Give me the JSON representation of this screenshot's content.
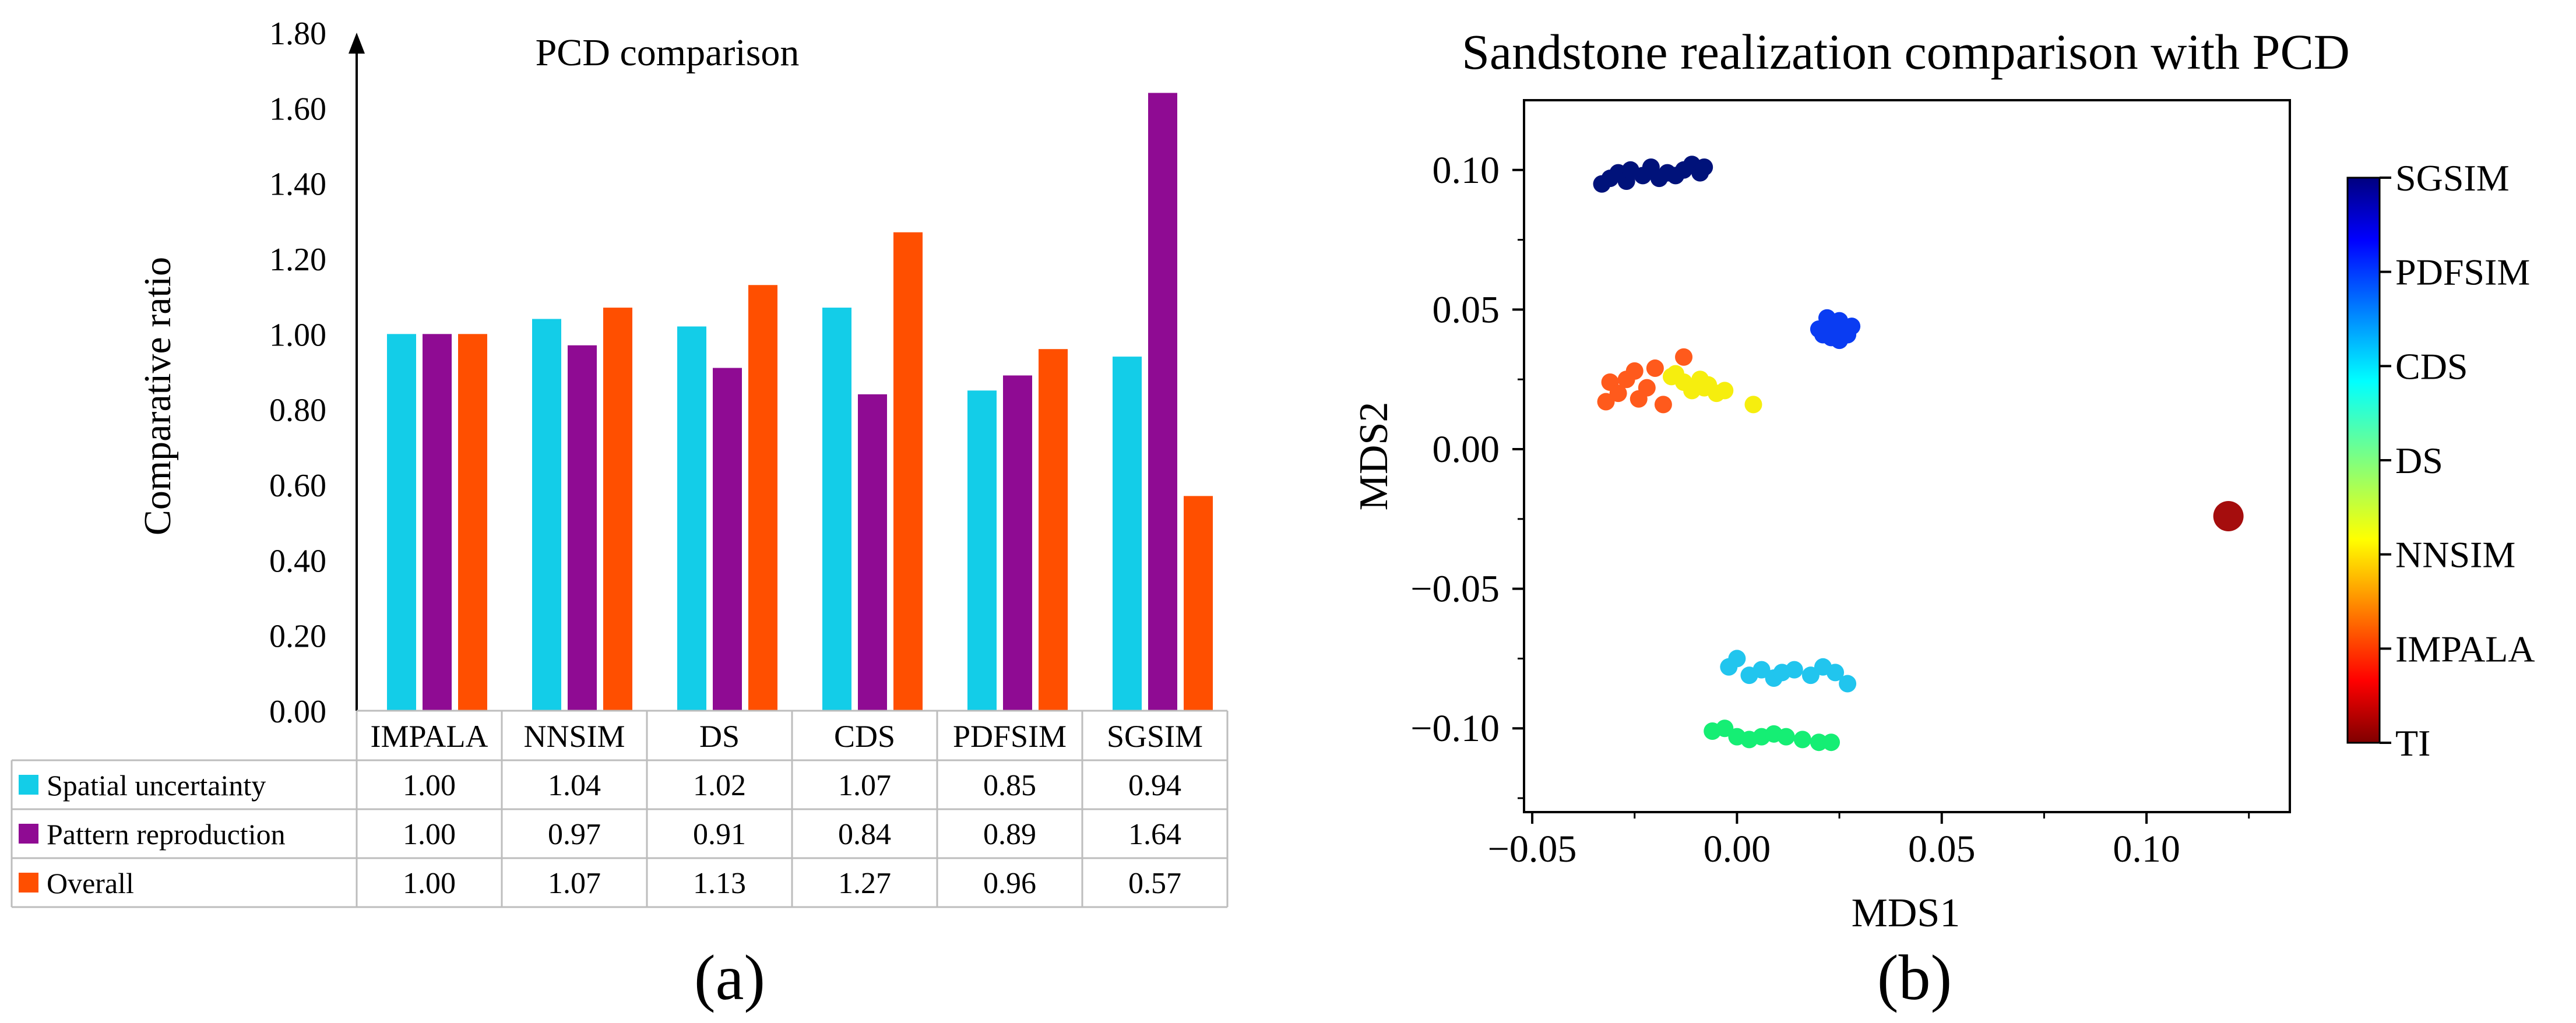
{
  "chart_data": [
    {
      "type": "bar",
      "title": "PCD comparison",
      "ylabel": "Comparative ratio",
      "xlabel": "",
      "ylim": [
        0,
        1.8
      ],
      "yticks": [
        "0.00",
        "0.20",
        "0.40",
        "0.60",
        "0.80",
        "1.00",
        "1.20",
        "1.40",
        "1.60",
        "1.80"
      ],
      "categories": [
        "IMPALA",
        "NNSIM",
        "DS",
        "CDS",
        "PDFSIM",
        "SGSIM"
      ],
      "series": [
        {
          "name": "Spatial uncertainty",
          "color": "#13cde8",
          "values": [
            1.0,
            1.04,
            1.02,
            1.07,
            0.85,
            0.94
          ],
          "labels": [
            "1.00",
            "1.04",
            "1.02",
            "1.07",
            "0.85",
            "0.94"
          ]
        },
        {
          "name": "Pattern reproduction",
          "color": "#8f0b93",
          "values": [
            1.0,
            0.97,
            0.91,
            0.84,
            0.89,
            1.64
          ],
          "labels": [
            "1.00",
            "0.97",
            "0.91",
            "0.84",
            "0.89",
            "1.64"
          ]
        },
        {
          "name": "Overall",
          "color": "#ff4f00",
          "values": [
            1.0,
            1.07,
            1.13,
            1.27,
            0.96,
            0.57
          ],
          "labels": [
            "1.00",
            "1.07",
            "1.13",
            "1.27",
            "0.96",
            "0.57"
          ]
        }
      ],
      "grid": false,
      "legend": "data-table below",
      "panel_label": "(a)"
    },
    {
      "type": "scatter",
      "title": "Sandstone realization comparison with PCD",
      "xlabel": "MDS1",
      "ylabel": "MDS2",
      "xlim": [
        -0.052,
        0.135
      ],
      "ylim": [
        -0.13,
        0.125
      ],
      "xticks": [
        -0.05,
        0.0,
        0.05,
        0.1
      ],
      "xtick_labels": [
        "−0.05",
        "0.00",
        "0.05",
        "0.10"
      ],
      "yticks": [
        0.1,
        0.05,
        0.0,
        -0.05,
        -0.1
      ],
      "ytick_labels": [
        "0.10",
        "0.05",
        "0.00",
        "−0.05",
        "−0.10"
      ],
      "colorbar": {
        "labels": [
          "SGSIM",
          "PDFSIM",
          "CDS",
          "DS",
          "NNSIM",
          "IMPALA",
          "TI"
        ],
        "colors": [
          "#00007f",
          "#0010ff",
          "#00d4ff",
          "#29ff73",
          "#f4f802",
          "#ff3000",
          "#7f0000"
        ]
      },
      "series": [
        {
          "name": "SGSIM",
          "color": "#00127a",
          "x": [
            -0.033,
            -0.031,
            -0.029,
            -0.027,
            -0.026,
            -0.023,
            -0.021,
            -0.019,
            -0.017,
            -0.015,
            -0.013,
            -0.011,
            -0.009,
            -0.008
          ],
          "y": [
            0.095,
            0.097,
            0.099,
            0.096,
            0.1,
            0.098,
            0.101,
            0.097,
            0.099,
            0.098,
            0.1,
            0.102,
            0.099,
            0.101
          ]
        },
        {
          "name": "PDFSIM",
          "color": "#0a3cf2",
          "x": [
            0.02,
            0.022,
            0.024,
            0.026,
            0.028,
            0.021,
            0.023,
            0.025,
            0.027,
            0.022,
            0.024,
            0.025
          ],
          "y": [
            0.043,
            0.047,
            0.045,
            0.042,
            0.044,
            0.041,
            0.04,
            0.039,
            0.041,
            0.044,
            0.042,
            0.046
          ]
        },
        {
          "name": "CDS",
          "color": "#21c5ee",
          "x": [
            -0.002,
            0.0,
            0.003,
            0.006,
            0.009,
            0.011,
            0.014,
            0.018,
            0.021,
            0.024,
            0.027
          ],
          "y": [
            -0.078,
            -0.075,
            -0.081,
            -0.079,
            -0.082,
            -0.08,
            -0.079,
            -0.081,
            -0.078,
            -0.08,
            -0.084
          ]
        },
        {
          "name": "DS",
          "color": "#15ee74",
          "x": [
            -0.006,
            -0.003,
            0.0,
            0.003,
            0.006,
            0.009,
            0.012,
            0.016,
            0.02,
            0.023
          ],
          "y": [
            -0.101,
            -0.1,
            -0.103,
            -0.104,
            -0.103,
            -0.102,
            -0.103,
            -0.104,
            -0.105,
            -0.105
          ]
        },
        {
          "name": "NNSIM",
          "color": "#f6ee0e",
          "x": [
            -0.016,
            -0.013,
            -0.011,
            -0.009,
            -0.007,
            -0.005,
            -0.003,
            0.004,
            -0.015,
            -0.008
          ],
          "y": [
            0.026,
            0.024,
            0.021,
            0.025,
            0.023,
            0.02,
            0.021,
            0.016,
            0.027,
            0.022
          ]
        },
        {
          "name": "IMPALA",
          "color": "#ff5a1c",
          "x": [
            -0.032,
            -0.031,
            -0.029,
            -0.027,
            -0.025,
            -0.024,
            -0.022,
            -0.02,
            -0.018,
            -0.013
          ],
          "y": [
            0.017,
            0.024,
            0.02,
            0.025,
            0.028,
            0.018,
            0.022,
            0.029,
            0.016,
            0.033
          ]
        },
        {
          "name": "TI",
          "color": "#a50d0d",
          "x": [
            0.12
          ],
          "y": [
            -0.024
          ]
        }
      ],
      "panel_label": "(b)"
    }
  ]
}
